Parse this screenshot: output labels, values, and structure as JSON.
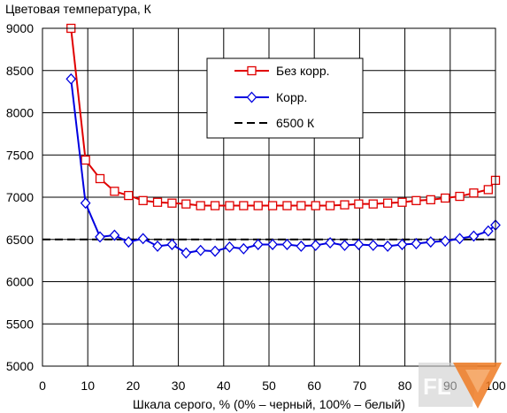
{
  "chart_data": {
    "type": "line",
    "title": "Цветовая температура, К",
    "xlabel": "Шкала серого, % (0% – черный, 100% – белый)",
    "ylabel": "",
    "xlim": [
      0,
      100
    ],
    "ylim": [
      5000,
      9000
    ],
    "x_ticks": [
      "0",
      "10",
      "20",
      "30",
      "40",
      "50",
      "60",
      "70",
      "80",
      "90",
      "100"
    ],
    "y_ticks": [
      "5000",
      "5500",
      "6000",
      "6500",
      "7000",
      "7500",
      "8000",
      "8500",
      "9000"
    ],
    "grid": true,
    "legend_position": "top-center",
    "series": [
      {
        "name": "Без корр.",
        "color": "#e00000",
        "marker": "square",
        "x": [
          6.3,
          9.5,
          12.7,
          15.9,
          19.0,
          22.2,
          25.4,
          28.6,
          31.7,
          34.9,
          38.1,
          41.3,
          44.4,
          47.6,
          50.8,
          54.0,
          57.1,
          60.3,
          63.5,
          66.7,
          69.8,
          73.0,
          76.2,
          79.4,
          82.5,
          85.7,
          88.9,
          92.1,
          95.2,
          98.4,
          100
        ],
        "y": [
          9000,
          7440,
          7220,
          7070,
          7020,
          6960,
          6940,
          6930,
          6920,
          6900,
          6900,
          6900,
          6900,
          6900,
          6900,
          6900,
          6900,
          6900,
          6900,
          6910,
          6920,
          6920,
          6930,
          6940,
          6960,
          6970,
          6990,
          7010,
          7050,
          7090,
          7200
        ]
      },
      {
        "name": "Корр.",
        "color": "#0000e0",
        "marker": "diamond",
        "x": [
          6.3,
          9.5,
          12.7,
          15.9,
          19.0,
          22.2,
          25.4,
          28.6,
          31.7,
          34.9,
          38.1,
          41.3,
          44.4,
          47.6,
          50.8,
          54.0,
          57.1,
          60.3,
          63.5,
          66.7,
          69.8,
          73.0,
          76.2,
          79.4,
          82.5,
          85.7,
          88.9,
          92.1,
          95.2,
          98.4,
          100
        ],
        "y": [
          8400,
          6930,
          6530,
          6550,
          6470,
          6510,
          6420,
          6440,
          6340,
          6370,
          6360,
          6410,
          6390,
          6440,
          6440,
          6440,
          6420,
          6430,
          6460,
          6430,
          6440,
          6430,
          6420,
          6440,
          6450,
          6470,
          6480,
          6510,
          6540,
          6600,
          6670
        ]
      },
      {
        "name": "6500 К",
        "color": "#000000",
        "style": "dashed",
        "x": [
          0,
          100
        ],
        "y": [
          6500,
          6500
        ]
      }
    ]
  }
}
